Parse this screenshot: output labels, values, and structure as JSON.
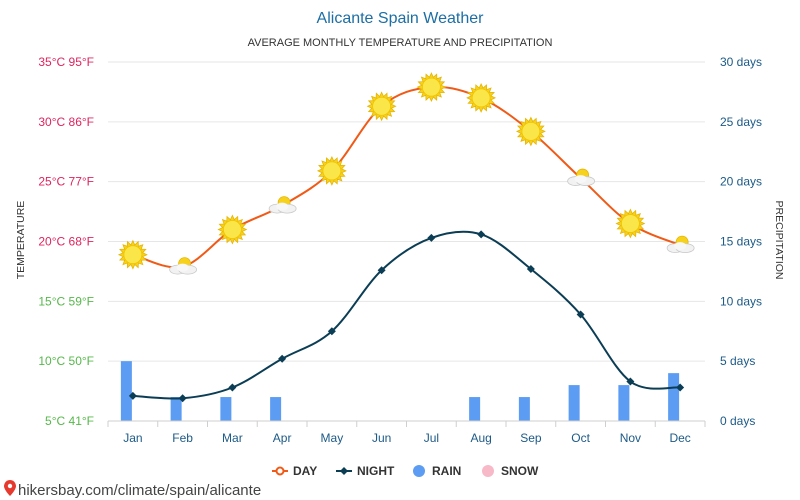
{
  "chart_data": {
    "type": "line",
    "title": "Alicante Spain Weather",
    "subtitle": "AVERAGE MONTHLY TEMPERATURE AND PRECIPITATION",
    "categories": [
      "Jan",
      "Feb",
      "Mar",
      "Apr",
      "May",
      "Jun",
      "Jul",
      "Aug",
      "Sep",
      "Oct",
      "Nov",
      "Dec"
    ],
    "y_left": {
      "label": "TEMPERATURE",
      "range_celsius": [
        5,
        35
      ],
      "ticks": [
        {
          "value": 35,
          "label": "35°C 95°F",
          "color": "#e0245e"
        },
        {
          "value": 30,
          "label": "30°C 86°F",
          "color": "#e0245e"
        },
        {
          "value": 25,
          "label": "25°C 77°F",
          "color": "#e0245e"
        },
        {
          "value": 20,
          "label": "20°C 68°F",
          "color": "#e0245e"
        },
        {
          "value": 15,
          "label": "15°C 59°F",
          "color": "#56b84a"
        },
        {
          "value": 10,
          "label": "10°C 50°F",
          "color": "#56b84a"
        },
        {
          "value": 5,
          "label": "5°C 41°F",
          "color": "#56b84a"
        }
      ]
    },
    "y_right": {
      "label": "PRECIPITATION",
      "range_days": [
        0,
        30
      ],
      "ticks": [
        {
          "value": 30,
          "label": "30 days"
        },
        {
          "value": 25,
          "label": "25 days"
        },
        {
          "value": 20,
          "label": "20 days"
        },
        {
          "value": 15,
          "label": "15 days"
        },
        {
          "value": 10,
          "label": "10 days"
        },
        {
          "value": 5,
          "label": "5 days"
        },
        {
          "value": 0,
          "label": "0 days"
        }
      ]
    },
    "series": [
      {
        "name": "DAY",
        "axis": "left",
        "color": "#f05a16",
        "values": [
          18.9,
          17.9,
          21.0,
          23.0,
          25.9,
          31.3,
          32.9,
          32.0,
          29.2,
          25.3,
          21.5,
          19.7
        ]
      },
      {
        "name": "NIGHT",
        "axis": "left",
        "color": "#0b3d55",
        "values": [
          7.1,
          6.9,
          7.8,
          10.2,
          12.5,
          17.6,
          20.3,
          20.6,
          17.7,
          13.9,
          8.3,
          7.8
        ]
      },
      {
        "name": "RAIN",
        "axis": "right",
        "color": "#5c9cf2",
        "values": [
          5,
          2,
          2,
          2,
          0,
          0,
          0,
          2,
          2,
          3,
          3,
          4
        ]
      },
      {
        "name": "SNOW",
        "axis": "right",
        "color": "#f7b9c7",
        "values": [
          0,
          0,
          0,
          0,
          0,
          0,
          0,
          0,
          0,
          0,
          0,
          0
        ]
      }
    ],
    "day_icons": [
      "sun",
      "sun-cloud",
      "sun",
      "sun-cloud",
      "sun",
      "sun",
      "sun",
      "sun",
      "sun",
      "sun-cloud",
      "sun",
      "sun-cloud"
    ],
    "grid": true,
    "legend_position": "bottom-center"
  },
  "footer": {
    "link_text": "hikersbay.com/climate/spain/alicante",
    "pin_color": "#e63a2e"
  }
}
